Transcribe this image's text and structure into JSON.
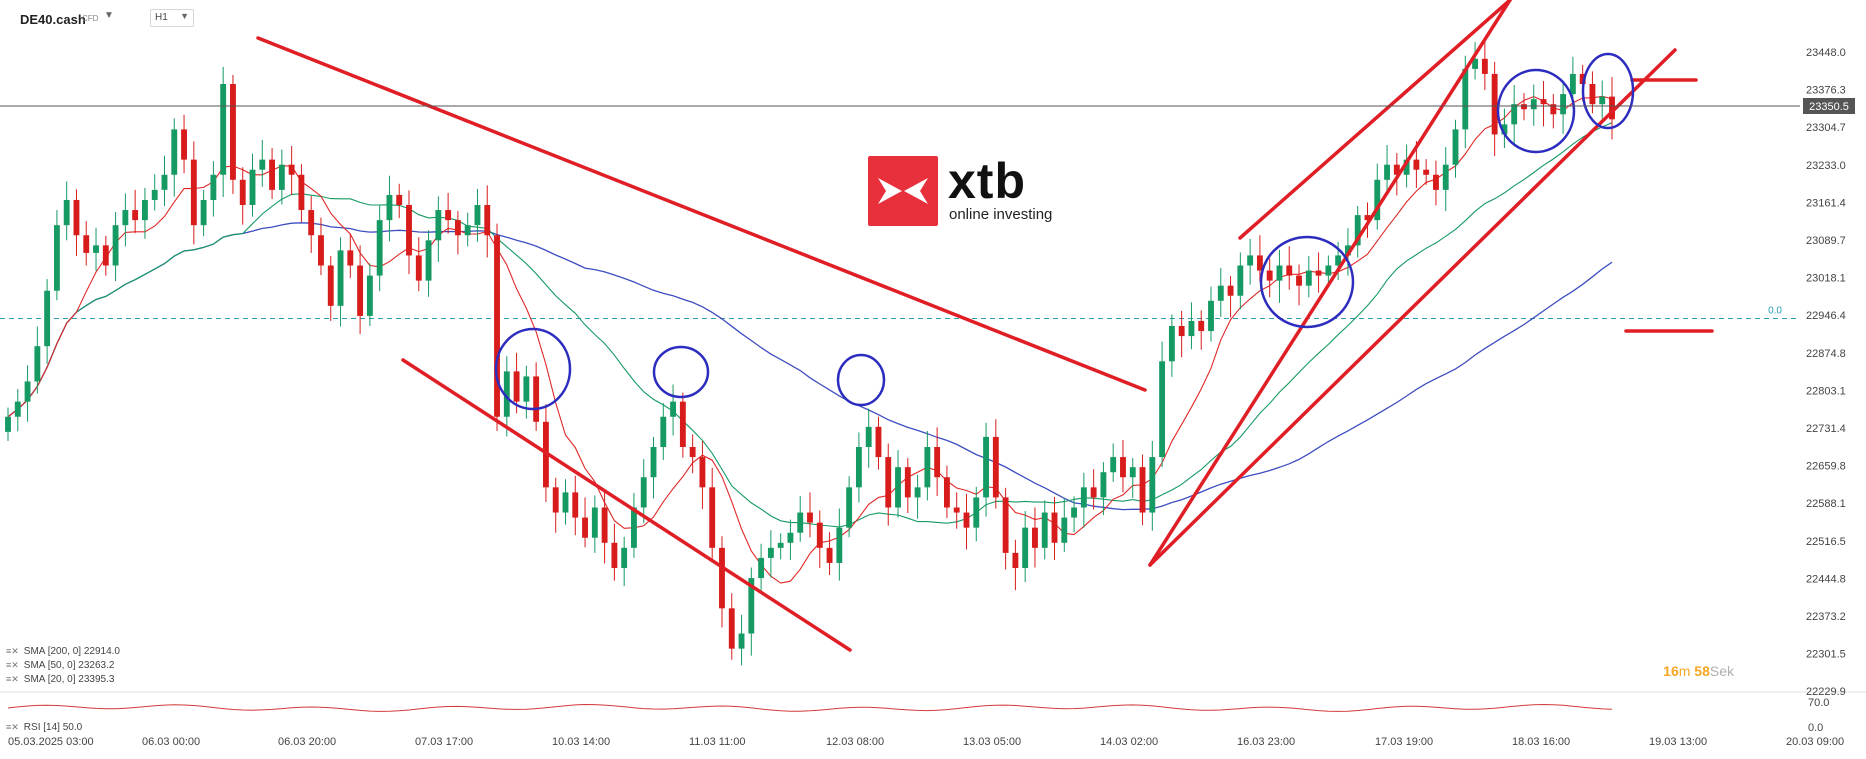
{
  "header": {
    "symbol": "DE40.cash",
    "symbol_type": "CFD",
    "timeframe": "H1"
  },
  "logo": {
    "word": "xtb",
    "tagline": "online investing"
  },
  "indicators": [
    {
      "label": "SMA [200, 0] 22914.0",
      "color": "#3d4ec0"
    },
    {
      "label": "SMA [50, 0] 23263.2",
      "color": "#169a63"
    },
    {
      "label": "SMA [20, 0] 23395.3",
      "color": "#e02828"
    }
  ],
  "timer": {
    "minutes": "16",
    "m_unit": "m",
    "seconds": "58",
    "s_unit": "Sek"
  },
  "rsi": {
    "label": "RSI [14] 50.0",
    "levels": [
      "70.0",
      "0.0"
    ]
  },
  "colors": {
    "up": "#169a63",
    "down": "#d81b1b",
    "trend": "#e01e26",
    "circle": "#2c2cbf",
    "sma200": "#3d4ec0",
    "sma50": "#169a63",
    "sma20": "#e02828"
  },
  "chart_data": {
    "type": "candlestick",
    "title": "DE40.cash H1",
    "ylim": [
      22229.9,
      23519.2
    ],
    "price_ticks": [
      "23448.0",
      "23376.3",
      "23304.7",
      "23233.0",
      "23161.4",
      "23089.7",
      "23018.1",
      "22946.4",
      "22874.8",
      "22803.1",
      "22731.4",
      "22659.8",
      "22588.1",
      "22516.5",
      "22444.8",
      "22373.2",
      "22301.5",
      "22229.9"
    ],
    "current_price": "23350.5",
    "horizontal_level": {
      "label": "0.0",
      "value": 22955
    },
    "x_ticks": [
      "05.03.2025  03:00",
      "06.03  00:00",
      "06.03  20:00",
      "07.03  17:00",
      "10.03  14:00",
      "11.03  11:00",
      "12.03  08:00",
      "13.03  05:00",
      "14.03  02:00",
      "16.03  23:00",
      "17.03  19:00",
      "18.03  16:00",
      "19.03  13:00",
      "20.03  09:00"
    ],
    "candles": [
      {
        "o": 22730,
        "c": 22760
      },
      {
        "o": 22760,
        "c": 22790
      },
      {
        "o": 22790,
        "c": 22830
      },
      {
        "o": 22830,
        "c": 22900
      },
      {
        "o": 22900,
        "c": 23010
      },
      {
        "o": 23010,
        "c": 23140
      },
      {
        "o": 23140,
        "c": 23190
      },
      {
        "o": 23190,
        "c": 23120
      },
      {
        "o": 23120,
        "c": 23085
      },
      {
        "o": 23085,
        "c": 23100
      },
      {
        "o": 23100,
        "c": 23060
      },
      {
        "o": 23060,
        "c": 23140
      },
      {
        "o": 23140,
        "c": 23170
      },
      {
        "o": 23170,
        "c": 23150
      },
      {
        "o": 23150,
        "c": 23190
      },
      {
        "o": 23190,
        "c": 23210
      },
      {
        "o": 23210,
        "c": 23240
      },
      {
        "o": 23240,
        "c": 23330
      },
      {
        "o": 23330,
        "c": 23270
      },
      {
        "o": 23270,
        "c": 23140
      },
      {
        "o": 23140,
        "c": 23190
      },
      {
        "o": 23190,
        "c": 23240
      },
      {
        "o": 23240,
        "c": 23420
      },
      {
        "o": 23420,
        "c": 23230
      },
      {
        "o": 23230,
        "c": 23180
      },
      {
        "o": 23180,
        "c": 23250
      },
      {
        "o": 23250,
        "c": 23270
      },
      {
        "o": 23270,
        "c": 23210
      },
      {
        "o": 23210,
        "c": 23260
      },
      {
        "o": 23260,
        "c": 23240
      },
      {
        "o": 23240,
        "c": 23170
      },
      {
        "o": 23170,
        "c": 23120
      },
      {
        "o": 23120,
        "c": 23060
      },
      {
        "o": 23060,
        "c": 22980
      },
      {
        "o": 22980,
        "c": 23090
      },
      {
        "o": 23090,
        "c": 23060
      },
      {
        "o": 23060,
        "c": 22960
      },
      {
        "o": 22960,
        "c": 23040
      },
      {
        "o": 23040,
        "c": 23150
      },
      {
        "o": 23150,
        "c": 23200
      },
      {
        "o": 23200,
        "c": 23180
      },
      {
        "o": 23180,
        "c": 23080
      },
      {
        "o": 23080,
        "c": 23030
      },
      {
        "o": 23030,
        "c": 23110
      },
      {
        "o": 23110,
        "c": 23170
      },
      {
        "o": 23170,
        "c": 23150
      },
      {
        "o": 23150,
        "c": 23120
      },
      {
        "o": 23120,
        "c": 23140
      },
      {
        "o": 23140,
        "c": 23180
      },
      {
        "o": 23180,
        "c": 23120
      },
      {
        "o": 23120,
        "c": 22760
      },
      {
        "o": 22760,
        "c": 22850
      },
      {
        "o": 22850,
        "c": 22790
      },
      {
        "o": 22790,
        "c": 22840
      },
      {
        "o": 22840,
        "c": 22750
      },
      {
        "o": 22750,
        "c": 22620
      },
      {
        "o": 22620,
        "c": 22570
      },
      {
        "o": 22570,
        "c": 22610
      },
      {
        "o": 22610,
        "c": 22560
      },
      {
        "o": 22560,
        "c": 22520
      },
      {
        "o": 22520,
        "c": 22580
      },
      {
        "o": 22580,
        "c": 22510
      },
      {
        "o": 22510,
        "c": 22460
      },
      {
        "o": 22460,
        "c": 22500
      },
      {
        "o": 22500,
        "c": 22580
      },
      {
        "o": 22580,
        "c": 22640
      },
      {
        "o": 22640,
        "c": 22700
      },
      {
        "o": 22700,
        "c": 22760
      },
      {
        "o": 22760,
        "c": 22790
      },
      {
        "o": 22790,
        "c": 22700
      },
      {
        "o": 22700,
        "c": 22680
      },
      {
        "o": 22680,
        "c": 22620
      },
      {
        "o": 22620,
        "c": 22500
      },
      {
        "o": 22500,
        "c": 22380
      },
      {
        "o": 22380,
        "c": 22300
      },
      {
        "o": 22300,
        "c": 22330
      },
      {
        "o": 22330,
        "c": 22440
      },
      {
        "o": 22440,
        "c": 22480
      },
      {
        "o": 22480,
        "c": 22500
      },
      {
        "o": 22500,
        "c": 22510
      },
      {
        "o": 22510,
        "c": 22530
      },
      {
        "o": 22530,
        "c": 22570
      },
      {
        "o": 22570,
        "c": 22550
      },
      {
        "o": 22550,
        "c": 22500
      },
      {
        "o": 22500,
        "c": 22470
      },
      {
        "o": 22470,
        "c": 22540
      },
      {
        "o": 22540,
        "c": 22620
      },
      {
        "o": 22620,
        "c": 22700
      },
      {
        "o": 22700,
        "c": 22740
      },
      {
        "o": 22740,
        "c": 22680
      },
      {
        "o": 22680,
        "c": 22580
      },
      {
        "o": 22580,
        "c": 22660
      },
      {
        "o": 22660,
        "c": 22600
      },
      {
        "o": 22600,
        "c": 22620
      },
      {
        "o": 22620,
        "c": 22700
      },
      {
        "o": 22700,
        "c": 22640
      },
      {
        "o": 22640,
        "c": 22580
      },
      {
        "o": 22580,
        "c": 22570
      },
      {
        "o": 22570,
        "c": 22540
      },
      {
        "o": 22540,
        "c": 22600
      },
      {
        "o": 22600,
        "c": 22720
      },
      {
        "o": 22720,
        "c": 22600
      },
      {
        "o": 22600,
        "c": 22490
      },
      {
        "o": 22490,
        "c": 22460
      },
      {
        "o": 22460,
        "c": 22540
      },
      {
        "o": 22540,
        "c": 22500
      },
      {
        "o": 22500,
        "c": 22570
      },
      {
        "o": 22570,
        "c": 22510
      },
      {
        "o": 22510,
        "c": 22560
      },
      {
        "o": 22560,
        "c": 22580
      },
      {
        "o": 22580,
        "c": 22620
      },
      {
        "o": 22620,
        "c": 22600
      },
      {
        "o": 22600,
        "c": 22650
      },
      {
        "o": 22650,
        "c": 22680
      },
      {
        "o": 22680,
        "c": 22640
      },
      {
        "o": 22640,
        "c": 22660
      },
      {
        "o": 22660,
        "c": 22570
      },
      {
        "o": 22570,
        "c": 22680
      },
      {
        "o": 22680,
        "c": 22870
      },
      {
        "o": 22870,
        "c": 22940
      },
      {
        "o": 22940,
        "c": 22920
      },
      {
        "o": 22920,
        "c": 22950
      },
      {
        "o": 22950,
        "c": 22930
      },
      {
        "o": 22930,
        "c": 22990
      },
      {
        "o": 22990,
        "c": 23020
      },
      {
        "o": 23020,
        "c": 23000
      },
      {
        "o": 23000,
        "c": 23060
      },
      {
        "o": 23060,
        "c": 23080
      },
      {
        "o": 23080,
        "c": 23050
      },
      {
        "o": 23050,
        "c": 23030
      },
      {
        "o": 23030,
        "c": 23060
      },
      {
        "o": 23060,
        "c": 23040
      },
      {
        "o": 23040,
        "c": 23020
      },
      {
        "o": 23020,
        "c": 23050
      },
      {
        "o": 23050,
        "c": 23040
      },
      {
        "o": 23040,
        "c": 23060
      },
      {
        "o": 23060,
        "c": 23080
      },
      {
        "o": 23080,
        "c": 23100
      },
      {
        "o": 23100,
        "c": 23160
      },
      {
        "o": 23160,
        "c": 23150
      },
      {
        "o": 23150,
        "c": 23230
      },
      {
        "o": 23230,
        "c": 23260
      },
      {
        "o": 23260,
        "c": 23240
      },
      {
        "o": 23240,
        "c": 23270
      },
      {
        "o": 23270,
        "c": 23250
      },
      {
        "o": 23250,
        "c": 23240
      },
      {
        "o": 23240,
        "c": 23210
      },
      {
        "o": 23210,
        "c": 23260
      },
      {
        "o": 23260,
        "c": 23330
      },
      {
        "o": 23330,
        "c": 23450
      },
      {
        "o": 23450,
        "c": 23470
      },
      {
        "o": 23470,
        "c": 23440
      },
      {
        "o": 23440,
        "c": 23320
      },
      {
        "o": 23320,
        "c": 23340
      },
      {
        "o": 23340,
        "c": 23380
      },
      {
        "o": 23380,
        "c": 23370
      },
      {
        "o": 23370,
        "c": 23390
      },
      {
        "o": 23390,
        "c": 23380
      },
      {
        "o": 23380,
        "c": 23360
      },
      {
        "o": 23360,
        "c": 23400
      },
      {
        "o": 23400,
        "c": 23440
      },
      {
        "o": 23440,
        "c": 23420
      },
      {
        "o": 23420,
        "c": 23380
      },
      {
        "o": 23380,
        "c": 23395
      },
      {
        "o": 23395,
        "c": 23350
      }
    ]
  }
}
